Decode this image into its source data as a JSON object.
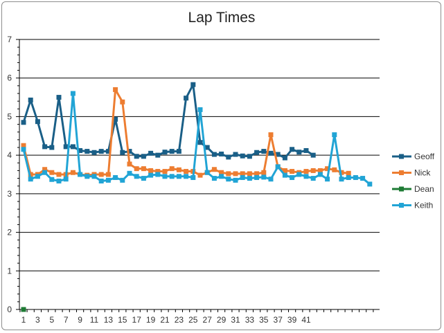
{
  "chart_data": {
    "type": "line",
    "title": "Lap Times",
    "xlabel": "",
    "ylabel": "",
    "ylim": [
      0,
      7
    ],
    "yticks": [
      0,
      1,
      2,
      3,
      4,
      5,
      6,
      7
    ],
    "x_tick_labels": [
      "1",
      "3",
      "5",
      "7",
      "9",
      "11",
      "13",
      "15",
      "17",
      "19",
      "21",
      "23",
      "25",
      "27",
      "29",
      "31",
      "33",
      "35",
      "37",
      "39",
      "41"
    ],
    "legend_position": "right",
    "grid": "horizontal",
    "series": [
      {
        "name": "Geoff",
        "color": "#1a5f87",
        "x": [
          1,
          2,
          3,
          4,
          5,
          6,
          7,
          8,
          9,
          10,
          11,
          12,
          13,
          14,
          15,
          16,
          17,
          18,
          19,
          20,
          21,
          22,
          23,
          24,
          25,
          26,
          27,
          28,
          29,
          30,
          31,
          32,
          33,
          34,
          35,
          36,
          37,
          38,
          39,
          40,
          41,
          42
        ],
        "values": [
          4.85,
          5.43,
          4.87,
          4.22,
          4.2,
          5.5,
          4.22,
          4.22,
          4.12,
          4.1,
          4.07,
          4.1,
          4.1,
          4.93,
          4.07,
          4.1,
          3.97,
          3.97,
          4.05,
          4.0,
          4.08,
          4.1,
          4.1,
          5.48,
          5.83,
          4.33,
          4.2,
          4.02,
          4.03,
          3.95,
          4.02,
          3.98,
          3.97,
          4.07,
          4.1,
          4.05,
          4.02,
          3.93,
          4.15,
          4.08,
          4.12,
          4.0
        ]
      },
      {
        "name": "Nick",
        "color": "#ed7d31",
        "x": [
          1,
          2,
          3,
          4,
          5,
          6,
          7,
          8,
          9,
          10,
          11,
          12,
          13,
          14,
          15,
          16,
          17,
          18,
          19,
          20,
          21,
          22,
          23,
          24,
          25,
          26,
          27,
          28,
          29,
          30,
          31,
          32,
          33,
          34,
          35,
          36,
          37,
          38,
          39,
          40,
          41,
          42,
          43,
          44,
          45,
          46,
          47
        ],
        "values": [
          4.25,
          3.5,
          3.5,
          3.63,
          3.55,
          3.5,
          3.5,
          3.55,
          3.5,
          3.48,
          3.5,
          3.5,
          3.5,
          5.7,
          5.38,
          3.77,
          3.65,
          3.65,
          3.6,
          3.58,
          3.58,
          3.65,
          3.62,
          3.58,
          3.58,
          3.48,
          3.55,
          3.63,
          3.55,
          3.52,
          3.52,
          3.52,
          3.52,
          3.52,
          3.55,
          4.53,
          3.7,
          3.6,
          3.58,
          3.55,
          3.58,
          3.6,
          3.6,
          3.65,
          3.62,
          3.55,
          3.53
        ]
      },
      {
        "name": "Dean",
        "color": "#1e7b34",
        "x": [
          1
        ],
        "values": [
          0
        ]
      },
      {
        "name": "Keith",
        "color": "#21a4d5",
        "x": [
          1,
          2,
          3,
          4,
          5,
          6,
          7,
          8,
          9,
          10,
          11,
          12,
          13,
          14,
          15,
          16,
          17,
          18,
          19,
          20,
          21,
          22,
          23,
          24,
          25,
          26,
          27,
          28,
          29,
          30,
          31,
          32,
          33,
          34,
          35,
          36,
          37,
          38,
          39,
          40,
          41,
          42,
          43,
          44,
          45,
          46,
          47,
          48,
          49,
          50
        ],
        "values": [
          4.15,
          3.38,
          3.45,
          3.55,
          3.37,
          3.33,
          3.38,
          5.6,
          3.5,
          3.45,
          3.45,
          3.33,
          3.35,
          3.42,
          3.35,
          3.53,
          3.45,
          3.4,
          3.48,
          3.5,
          3.45,
          3.45,
          3.45,
          3.45,
          3.42,
          5.18,
          3.55,
          3.4,
          3.45,
          3.38,
          3.35,
          3.42,
          3.4,
          3.42,
          3.43,
          3.38,
          3.7,
          3.48,
          3.42,
          3.5,
          3.45,
          3.4,
          3.5,
          3.38,
          4.53,
          3.38,
          3.42,
          3.42,
          3.4,
          3.25
        ]
      }
    ]
  }
}
